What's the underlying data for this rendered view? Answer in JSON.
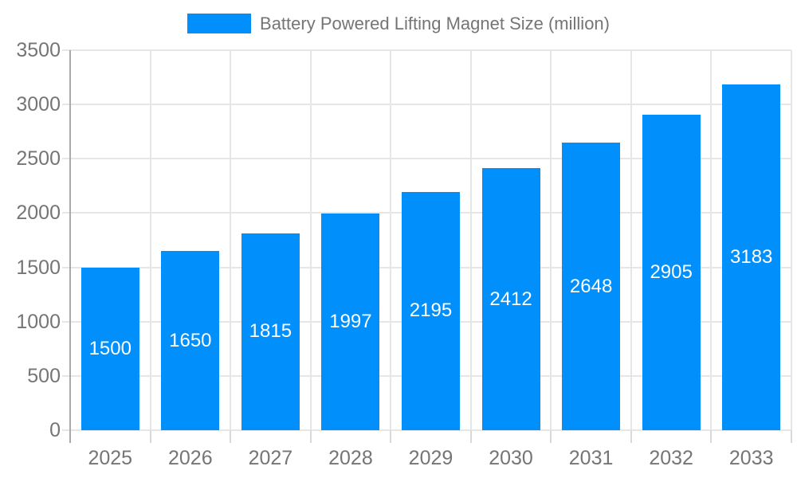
{
  "legend": {
    "label": "Battery Powered Lifting Magnet Size (million)"
  },
  "chart_data": {
    "type": "bar",
    "title": "Battery Powered Lifting Magnet Size (million)",
    "categories": [
      "2025",
      "2026",
      "2027",
      "2028",
      "2029",
      "2030",
      "2031",
      "2032",
      "2033"
    ],
    "values": [
      1500,
      1650,
      1815,
      1997,
      2195,
      2412,
      2648,
      2905,
      3183
    ],
    "series_name": "Battery Powered Lifting Magnet Size (million)",
    "xlabel": "",
    "ylabel": "",
    "ylim": [
      0,
      3500
    ],
    "ytick_step": 500,
    "yticks": [
      0,
      500,
      1000,
      1500,
      2000,
      2500,
      3000,
      3500
    ],
    "grid": true,
    "legend_position": "top-center",
    "bar_labels_inside": true
  },
  "style": {
    "bar_color": "#008FFB",
    "bar_label_color": "#ffffff",
    "grid_color": "#e6e6e6",
    "ytick_color": "#e6e6e6",
    "xtick_color": "#d9d9d9",
    "axis_line_color": "#a9a9a9",
    "axis_label_color": "#757575",
    "legend_text_color": "#757575",
    "background_color": "#ffffff"
  }
}
